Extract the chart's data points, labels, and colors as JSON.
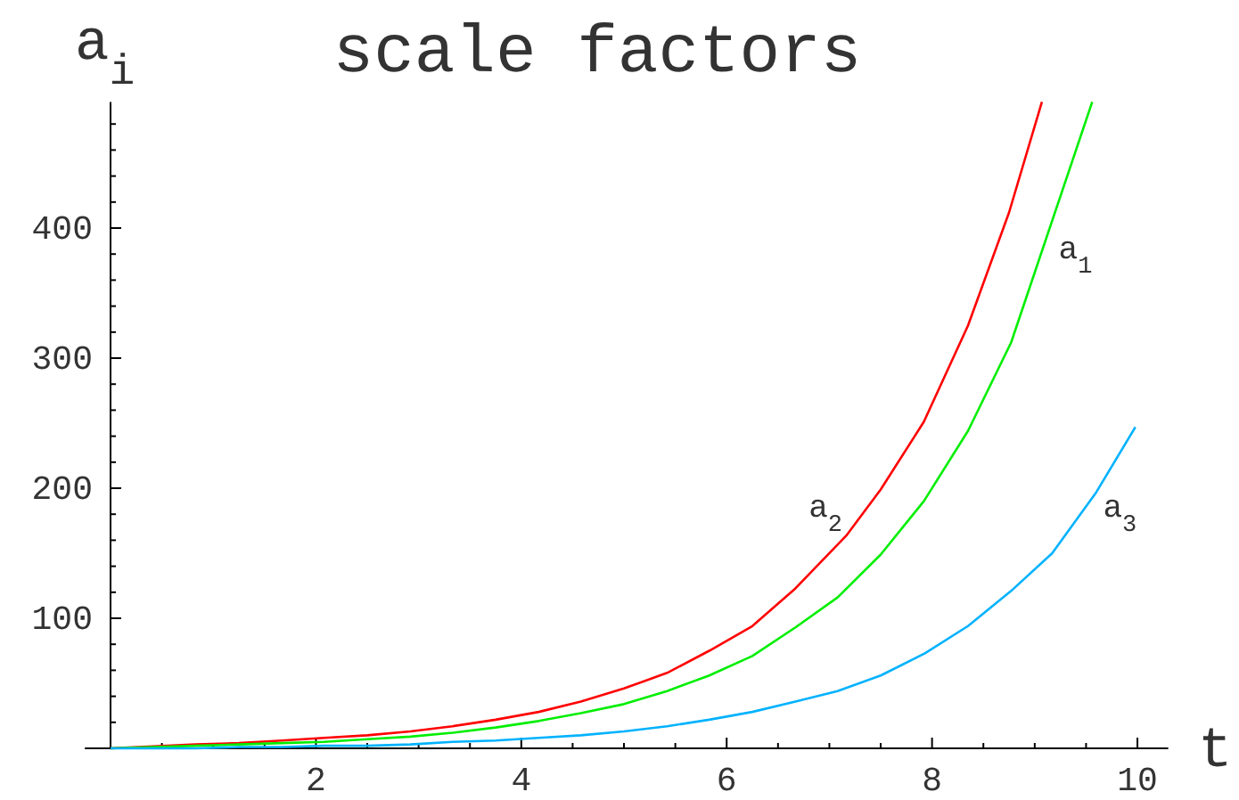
{
  "chart_data": {
    "type": "line",
    "title": "scale factors",
    "xlabel": "t",
    "ylabel": "a$_{i}$",
    "xlim": [
      -0.25,
      10.3
    ],
    "ylim": [
      0,
      497
    ],
    "xticks": [
      {
        "value": 0.5,
        "label": null
      },
      {
        "value": 1,
        "label": null
      },
      {
        "value": 1.5,
        "label": null
      },
      2,
      {
        "value": 2.5,
        "label": null
      },
      {
        "value": 3,
        "label": null
      },
      {
        "value": 3.5,
        "label": null
      },
      4,
      {
        "value": 4.5,
        "label": null
      },
      {
        "value": 5,
        "label": null
      },
      {
        "value": 5.5,
        "label": null
      },
      6,
      {
        "value": 6.5,
        "label": null
      },
      {
        "value": 7,
        "label": null
      },
      {
        "value": 7.5,
        "label": null
      },
      8,
      {
        "value": 8.5,
        "label": null
      },
      {
        "value": 9,
        "label": null
      },
      {
        "value": 9.5,
        "label": null
      },
      10
    ],
    "yticks": [
      {
        "value": 20,
        "label": null
      },
      {
        "value": 40,
        "label": null
      },
      {
        "value": 60,
        "label": null
      },
      {
        "value": 80,
        "label": null
      },
      100,
      {
        "value": 120,
        "label": null
      },
      {
        "value": 140,
        "label": null
      },
      {
        "value": 160,
        "label": null
      },
      {
        "value": 180,
        "label": null
      },
      200,
      {
        "value": 220,
        "label": null
      },
      {
        "value": 240,
        "label": null
      },
      {
        "value": 260,
        "label": null
      },
      {
        "value": 280,
        "label": null
      },
      300,
      {
        "value": 320,
        "label": null
      },
      {
        "value": 340,
        "label": null
      },
      {
        "value": 360,
        "label": null
      },
      {
        "value": 380,
        "label": null
      },
      400,
      {
        "value": 420,
        "label": null
      },
      {
        "value": 440,
        "label": null
      },
      {
        "value": 460,
        "label": null
      },
      {
        "value": 480,
        "label": null
      }
    ],
    "grid": false,
    "marker": "none",
    "line_style": "solid",
    "series": [
      {
        "name": "a$_{2}$",
        "color": "#ff0000",
        "x": [
          0,
          0.42,
          0.83,
          1.25,
          1.67,
          2.08,
          2.5,
          2.92,
          3.33,
          3.75,
          4.17,
          4.58,
          5.0,
          5.42,
          5.83,
          6.25,
          6.67,
          7.17,
          7.5,
          7.92,
          8.35,
          8.75,
          9.07
        ],
        "values": [
          0,
          null,
          3,
          4,
          6,
          8,
          10,
          13,
          17,
          22,
          28,
          36,
          46,
          58,
          75,
          94,
          123,
          164,
          199,
          251,
          325,
          412,
          497
        ]
      },
      {
        "name": "a$_{1}$",
        "color": "#00ee00",
        "x": [
          0,
          0.42,
          0.83,
          1.25,
          1.67,
          2.08,
          2.5,
          2.92,
          3.33,
          3.75,
          4.17,
          4.58,
          5.0,
          5.42,
          5.83,
          6.25,
          6.67,
          7.08,
          7.5,
          7.92,
          8.35,
          8.77,
          9.56
        ],
        "values": [
          0,
          1,
          2,
          3,
          4,
          5,
          7,
          9,
          12,
          16,
          21,
          27,
          34,
          44,
          56,
          71,
          93,
          116,
          149,
          190,
          244,
          312,
          497
        ]
      },
      {
        "name": "a$_{3}$",
        "color": "#00b2ff",
        "x": [
          0,
          0.42,
          0.83,
          1.25,
          1.67,
          2.08,
          2.5,
          2.92,
          3.33,
          3.75,
          4.17,
          4.58,
          5.0,
          5.42,
          5.83,
          6.25,
          6.67,
          7.08,
          7.5,
          7.93,
          8.35,
          8.77,
          9.17,
          9.6,
          9.98
        ],
        "values": [
          0,
          0,
          0,
          1,
          1,
          2,
          2,
          3,
          5,
          6,
          8,
          10,
          13,
          17,
          22,
          28,
          36,
          44,
          56,
          73,
          94,
          121,
          150,
          197,
          247
        ]
      }
    ]
  }
}
